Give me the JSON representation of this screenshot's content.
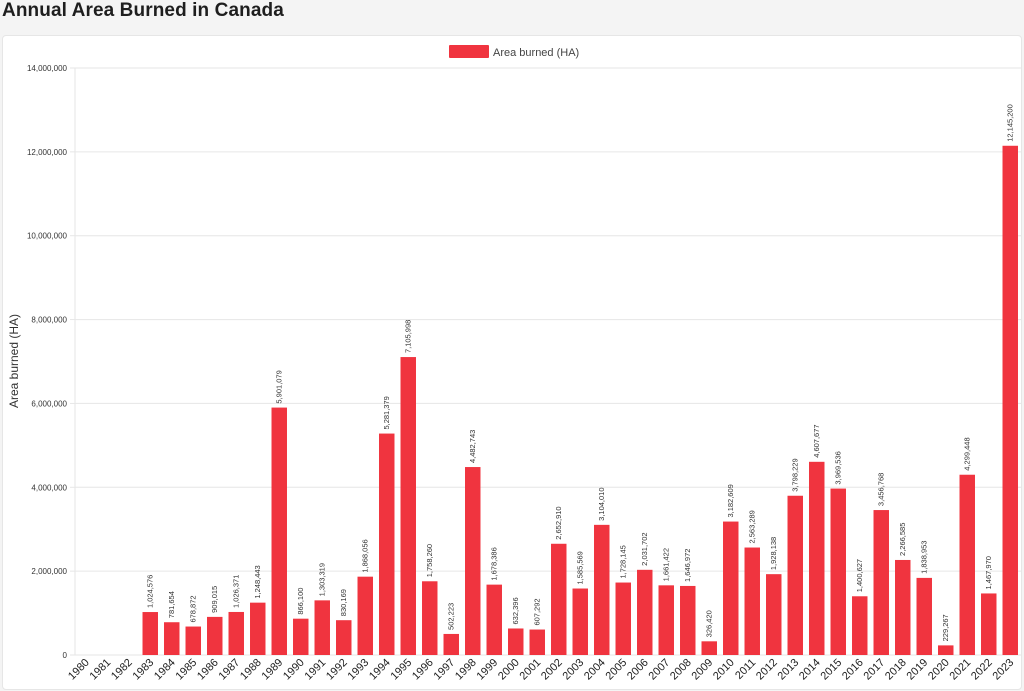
{
  "page": {
    "title": "Annual Area Burned in Canada"
  },
  "chart_data": {
    "type": "bar",
    "title": "Annual Area Burned in Canada",
    "xlabel": "",
    "ylabel": "Area burned (HA)",
    "ylim": [
      0,
      14000000
    ],
    "yticks": [
      0,
      2000000,
      4000000,
      6000000,
      8000000,
      10000000,
      12000000,
      14000000
    ],
    "ytick_labels": [
      "0",
      "2,000,000",
      "4,000,000",
      "6,000,000",
      "8,000,000",
      "10,000,000",
      "12,000,000",
      "14,000,000"
    ],
    "grid": true,
    "legend_position": "top-center",
    "color": "#f0343f",
    "categories": [
      "1980",
      "1981",
      "1982",
      "1983",
      "1984",
      "1985",
      "1986",
      "1987",
      "1988",
      "1989",
      "1990",
      "1991",
      "1992",
      "1993",
      "1994",
      "1995",
      "1996",
      "1997",
      "1998",
      "1999",
      "2000",
      "2001",
      "2002",
      "2003",
      "2004",
      "2005",
      "2006",
      "2007",
      "2008",
      "2009",
      "2010",
      "2011",
      "2012",
      "2013",
      "2014",
      "2015",
      "2016",
      "2017",
      "2018",
      "2019",
      "2020",
      "2021",
      "2022",
      "2023"
    ],
    "series": [
      {
        "name": "Area burned (HA)",
        "values": [
          0,
          0,
          0,
          1024576,
          781654,
          678872,
          909015,
          1026371,
          1248443,
          5901079,
          866100,
          1303319,
          830169,
          1868056,
          5281379,
          7105998,
          1758260,
          502223,
          4482743,
          1678386,
          632396,
          607292,
          2652910,
          1585569,
          3104010,
          1728145,
          2031702,
          1661422,
          1646972,
          326420,
          3182609,
          2563289,
          1928138,
          3798229,
          4607677,
          3969536,
          1400627,
          3456768,
          2266585,
          1838953,
          229267,
          4299448,
          1467970,
          12145200
        ],
        "labels": [
          "",
          "",
          "",
          "1,024,576",
          "781,654",
          "678,872",
          "909,015",
          "1,026,371",
          "1,248,443",
          "5,901,079",
          "866,100",
          "1,303,319",
          "830,169",
          "1,868,056",
          "5,281,379",
          "7,105,998",
          "1,758,260",
          "502,223",
          "4,482,743",
          "1,678,386",
          "632,396",
          "607,292",
          "2,652,910",
          "1,585,569",
          "3,104,010",
          "1,728,145",
          "2,031,702",
          "1,661,422",
          "1,646,972",
          "326,420",
          "3,182,609",
          "2,563,289",
          "1,928,138",
          "3,798,229",
          "4,607,677",
          "3,969,536",
          "1,400,627",
          "3,456,768",
          "2,266,585",
          "1,838,953",
          "229,267",
          "4,299,448",
          "1,467,970",
          "12,145,200"
        ]
      }
    ]
  }
}
